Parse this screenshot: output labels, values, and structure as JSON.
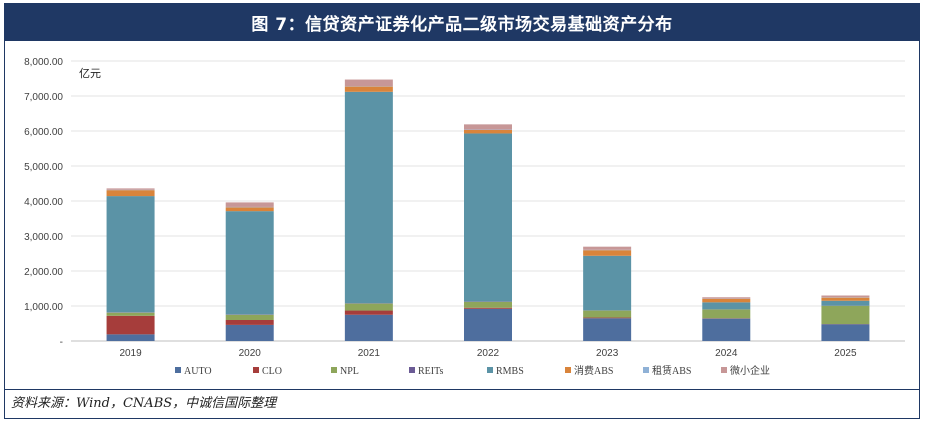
{
  "title": "图 7：信贷资产证券化产品二级市场交易基础资产分布",
  "source": "资料来源：Wind，CNABS，中诚信国际整理",
  "chart_data": {
    "type": "bar",
    "stacked": true,
    "unit_label": "亿元",
    "categories": [
      "2019",
      "2020",
      "2021",
      "2022",
      "2023",
      "2024",
      "2025"
    ],
    "ylim": [
      0,
      8000
    ],
    "yticks": [
      "-",
      "1,000.00",
      "2,000.00",
      "3,000.00",
      "4,000.00",
      "5,000.00",
      "6,000.00",
      "7,000.00",
      "8,000.00"
    ],
    "grid": true,
    "legend_position": "bottom",
    "series": [
      {
        "name": "AUTO",
        "color": "#4e6e9e",
        "values": [
          190,
          460,
          750,
          920,
          650,
          640,
          480
        ]
      },
      {
        "name": "CLO",
        "color": "#a63d3b",
        "values": [
          530,
          140,
          120,
          30,
          20,
          10,
          5
        ]
      },
      {
        "name": "NPL",
        "color": "#8ea65b",
        "values": [
          90,
          150,
          200,
          170,
          200,
          250,
          520
        ]
      },
      {
        "name": "REITs",
        "color": "#6b5b95",
        "values": [
          10,
          10,
          10,
          10,
          5,
          5,
          5
        ]
      },
      {
        "name": "RMBS",
        "color": "#5b93a6",
        "values": [
          3320,
          2950,
          6040,
          4800,
          1560,
          200,
          140
        ]
      },
      {
        "name": "消费ABS",
        "color": "#d9843b",
        "values": [
          170,
          110,
          150,
          100,
          160,
          100,
          90
        ]
      },
      {
        "name": "租赁ABS",
        "color": "#8fb1d6",
        "values": [
          10,
          10,
          10,
          10,
          10,
          5,
          10
        ]
      },
      {
        "name": "微小企业",
        "color": "#c79797",
        "values": [
          40,
          130,
          190,
          150,
          90,
          40,
          50
        ]
      }
    ]
  }
}
